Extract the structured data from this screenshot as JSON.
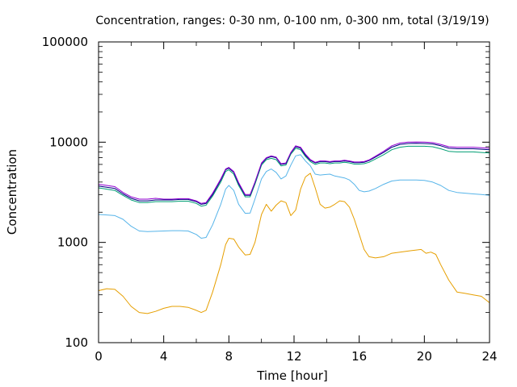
{
  "chart_data": {
    "type": "line",
    "title": "Concentration, ranges: 0-30 nm, 0-100 nm, 0-300 nm, total (3/19/19)",
    "xlabel": "Time [hour]",
    "ylabel": "Concentration",
    "xlim": [
      0,
      24
    ],
    "ylim": [
      100,
      100000
    ],
    "yscale": "log",
    "grid": false,
    "legend": "none",
    "x_ticks": [
      0,
      4,
      8,
      12,
      16,
      20,
      24
    ],
    "x_tick_labels": [
      "0",
      "4",
      "8",
      "12",
      "16",
      "20",
      "24"
    ],
    "y_ticks": [
      100,
      1000,
      10000,
      100000
    ],
    "y_tick_labels": [
      "100",
      "1000",
      "10000",
      "100000"
    ],
    "series": [
      {
        "color": "#e69f00",
        "x": [
          0,
          0.5,
          1,
          1.5,
          2,
          2.5,
          3,
          3.5,
          4,
          4.5,
          5,
          5.5,
          6,
          6.3,
          6.6,
          7,
          7.5,
          7.8,
          8,
          8.3,
          8.6,
          9,
          9.3,
          9.6,
          10,
          10.3,
          10.6,
          10.9,
          11.2,
          11.5,
          11.8,
          12.1,
          12.4,
          12.7,
          13,
          13.3,
          13.6,
          13.9,
          14.2,
          14.5,
          14.8,
          15.1,
          15.4,
          15.7,
          16,
          16.3,
          16.6,
          17,
          17.5,
          18,
          18.5,
          19,
          19.5,
          19.8,
          20.1,
          20.4,
          20.7,
          21,
          21.5,
          22,
          22.5,
          23,
          23.5,
          24
        ],
        "y": [
          330,
          345,
          340,
          290,
          230,
          200,
          195,
          205,
          220,
          230,
          230,
          225,
          210,
          200,
          210,
          320,
          600,
          950,
          1100,
          1080,
          900,
          750,
          760,
          1000,
          1900,
          2400,
          2050,
          2350,
          2600,
          2500,
          1850,
          2100,
          3400,
          4500,
          4900,
          3500,
          2400,
          2200,
          2250,
          2400,
          2600,
          2550,
          2250,
          1700,
          1200,
          850,
          720,
          700,
          720,
          780,
          800,
          820,
          840,
          850,
          780,
          800,
          760,
          600,
          420,
          320,
          310,
          300,
          290,
          250
        ]
      },
      {
        "color": "#56b4e9",
        "x": [
          0,
          0.5,
          1,
          1.5,
          2,
          2.5,
          3,
          3.5,
          4,
          4.5,
          5,
          5.5,
          6,
          6.3,
          6.6,
          7,
          7.5,
          7.8,
          8,
          8.3,
          8.6,
          9,
          9.3,
          9.6,
          10,
          10.3,
          10.6,
          10.9,
          11.2,
          11.5,
          11.8,
          12.1,
          12.4,
          12.7,
          13,
          13.3,
          13.6,
          13.9,
          14.2,
          14.5,
          14.8,
          15.1,
          15.4,
          15.7,
          16,
          16.3,
          16.6,
          17,
          17.5,
          18,
          18.5,
          19,
          19.5,
          20,
          20.5,
          21,
          21.5,
          22,
          22.5,
          23,
          23.5,
          24
        ],
        "y": [
          1900,
          1880,
          1850,
          1700,
          1450,
          1300,
          1280,
          1290,
          1300,
          1310,
          1310,
          1300,
          1200,
          1100,
          1120,
          1500,
          2400,
          3400,
          3700,
          3300,
          2400,
          1950,
          1960,
          2700,
          4300,
          5100,
          5400,
          5000,
          4300,
          4600,
          5900,
          7300,
          7500,
          6500,
          5800,
          4800,
          4700,
          4750,
          4800,
          4600,
          4500,
          4400,
          4200,
          3800,
          3300,
          3200,
          3250,
          3450,
          3800,
          4100,
          4200,
          4200,
          4200,
          4150,
          4000,
          3700,
          3300,
          3150,
          3100,
          3050,
          3000,
          2950
        ]
      },
      {
        "color": "#009e73",
        "x": [
          0,
          0.5,
          1,
          1.5,
          2,
          2.5,
          3,
          3.5,
          4,
          4.5,
          5,
          5.5,
          6,
          6.3,
          6.6,
          7,
          7.5,
          7.8,
          8,
          8.3,
          8.6,
          9,
          9.3,
          9.6,
          10,
          10.3,
          10.6,
          10.9,
          11.2,
          11.5,
          11.8,
          12.1,
          12.4,
          12.7,
          13,
          13.3,
          13.6,
          13.9,
          14.2,
          14.5,
          14.8,
          15.1,
          15.4,
          15.7,
          16,
          16.3,
          16.6,
          17,
          17.5,
          18,
          18.5,
          19,
          19.5,
          20,
          20.5,
          21,
          21.5,
          22,
          22.5,
          23,
          23.5,
          24
        ],
        "y": [
          3500,
          3400,
          3300,
          2950,
          2650,
          2500,
          2500,
          2550,
          2550,
          2550,
          2580,
          2580,
          2450,
          2300,
          2350,
          2900,
          4000,
          5100,
          5300,
          4800,
          3700,
          2850,
          2850,
          3800,
          5900,
          6700,
          6900,
          6700,
          5800,
          5900,
          7600,
          8700,
          8400,
          7200,
          6400,
          6000,
          6200,
          6200,
          6100,
          6200,
          6200,
          6300,
          6200,
          6050,
          6050,
          6100,
          6300,
          6800,
          7500,
          8400,
          8900,
          9100,
          9100,
          9100,
          9000,
          8600,
          8100,
          8000,
          8000,
          8000,
          7900,
          7800
        ]
      },
      {
        "color": "#000080",
        "x": [
          0,
          0.5,
          1,
          1.5,
          2,
          2.5,
          3,
          3.5,
          4,
          4.5,
          5,
          5.5,
          6,
          6.3,
          6.6,
          7,
          7.5,
          7.8,
          8,
          8.3,
          8.6,
          9,
          9.3,
          9.6,
          10,
          10.3,
          10.6,
          10.9,
          11.2,
          11.5,
          11.8,
          12.1,
          12.4,
          12.7,
          13,
          13.3,
          13.6,
          13.9,
          14.2,
          14.5,
          14.8,
          15.1,
          15.4,
          15.7,
          16,
          16.3,
          16.6,
          17,
          17.5,
          18,
          18.5,
          19,
          19.5,
          20,
          20.5,
          21,
          21.5,
          22,
          22.5,
          23,
          23.5,
          24
        ],
        "y": [
          3650,
          3550,
          3450,
          3050,
          2750,
          2600,
          2600,
          2650,
          2650,
          2650,
          2680,
          2680,
          2550,
          2400,
          2450,
          3000,
          4200,
          5300,
          5500,
          5000,
          3850,
          2950,
          2950,
          3950,
          6100,
          6900,
          7200,
          7000,
          6000,
          6100,
          7800,
          9000,
          8700,
          7400,
          6600,
          6200,
          6400,
          6400,
          6300,
          6400,
          6400,
          6500,
          6400,
          6250,
          6250,
          6300,
          6550,
          7100,
          7900,
          8900,
          9500,
          9700,
          9750,
          9700,
          9600,
          9200,
          8700,
          8600,
          8600,
          8600,
          8500,
          8400
        ]
      },
      {
        "color": "#9400d3",
        "x": [
          0,
          0.5,
          1,
          1.5,
          2,
          2.5,
          3,
          3.5,
          4,
          4.5,
          5,
          5.5,
          6,
          6.3,
          6.6,
          7,
          7.5,
          7.8,
          8,
          8.3,
          8.6,
          9,
          9.3,
          9.6,
          10,
          10.3,
          10.6,
          10.9,
          11.2,
          11.5,
          11.8,
          12.1,
          12.4,
          12.7,
          13,
          13.3,
          13.6,
          13.9,
          14.2,
          14.5,
          14.8,
          15.1,
          15.4,
          15.7,
          16,
          16.3,
          16.6,
          17,
          17.5,
          18,
          18.5,
          19,
          19.5,
          20,
          20.5,
          21,
          21.5,
          22,
          22.5,
          23,
          23.5,
          24
        ],
        "y": [
          3800,
          3700,
          3600,
          3150,
          2850,
          2700,
          2700,
          2750,
          2700,
          2700,
          2730,
          2730,
          2600,
          2450,
          2500,
          3100,
          4300,
          5400,
          5600,
          5100,
          3950,
          3000,
          3000,
          4000,
          6200,
          7000,
          7300,
          7100,
          6100,
          6200,
          7900,
          9200,
          8900,
          7600,
          6700,
          6300,
          6500,
          6500,
          6400,
          6500,
          6500,
          6600,
          6500,
          6350,
          6350,
          6400,
          6650,
          7250,
          8100,
          9200,
          9800,
          10000,
          10050,
          10000,
          9900,
          9500,
          9000,
          8900,
          8900,
          8900,
          8800,
          8700
        ]
      }
    ]
  }
}
